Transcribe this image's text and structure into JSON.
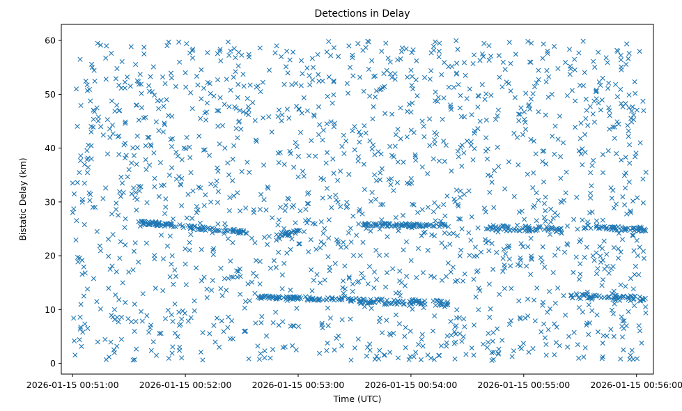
{
  "chart_data": {
    "type": "scatter",
    "title": "Detections in Delay",
    "xlabel": "Time (UTC)",
    "ylabel": "Bistatic Delay (km)",
    "x_tick_labels": [
      "2026-01-15 00:51:00",
      "2026-01-15 00:52:00",
      "2026-01-15 00:53:00",
      "2026-01-15 00:54:00",
      "2026-01-15 00:55:00",
      "2026-01-15 00:56:00"
    ],
    "y_tick_labels": [
      "0",
      "10",
      "20",
      "30",
      "40",
      "50",
      "60"
    ],
    "xlim": [
      "2026-01-15 00:50:54",
      "2026-01-15 00:56:09"
    ],
    "ylim": [
      -2,
      63
    ],
    "grid": false,
    "marker": "x",
    "color": "#1f77b4",
    "series": [
      {
        "points": [
          [
            "00:51:00",
            33.5
          ],
          [
            "00:51:02",
            51
          ],
          [
            "00:51:04",
            56.5
          ],
          [
            "00:51:06",
            12.5
          ],
          [
            "00:51:08",
            6.5
          ],
          [
            "00:51:10",
            38
          ],
          [
            "00:51:12",
            29
          ],
          [
            "00:51:15",
            44
          ],
          [
            "00:51:18",
            59
          ],
          [
            "00:51:20",
            17.5
          ],
          [
            "00:51:22",
            2.5
          ],
          [
            "00:51:25",
            47
          ],
          [
            "00:51:28",
            22
          ],
          [
            "00:51:30",
            36
          ],
          [
            "00:51:33",
            11
          ],
          [
            "00:51:36",
            25.5
          ],
          [
            "00:51:38",
            57.5
          ],
          [
            "00:51:40",
            42
          ],
          [
            "00:51:43",
            4
          ],
          [
            "00:51:46",
            31
          ],
          [
            "00:51:48",
            13.5
          ],
          [
            "00:51:50",
            49
          ],
          [
            "00:51:53",
            20
          ],
          [
            "00:51:56",
            38.5
          ],
          [
            "00:51:58",
            1
          ],
          [
            "00:52:00",
            54
          ],
          [
            "00:52:03",
            8.5
          ],
          [
            "00:52:06",
            28
          ],
          [
            "00:52:08",
            45.5
          ],
          [
            "00:52:10",
            16
          ],
          [
            "00:52:13",
            52
          ],
          [
            "00:52:16",
            33
          ],
          [
            "00:52:18",
            3
          ],
          [
            "00:52:21",
            40
          ],
          [
            "00:52:24",
            19
          ],
          [
            "00:52:26",
            58.5
          ],
          [
            "00:52:29",
            47
          ],
          [
            "00:52:32",
            6
          ],
          [
            "00:52:34",
            35.5
          ],
          [
            "00:52:37",
            13
          ],
          [
            "00:52:40",
            50.5
          ],
          [
            "00:52:43",
            28.5
          ],
          [
            "00:52:46",
            43
          ],
          [
            "00:52:48",
            9.5
          ],
          [
            "00:52:51",
            57
          ],
          [
            "00:52:54",
            20.5
          ],
          [
            "00:52:56",
            39
          ],
          [
            "00:52:59",
            2.5
          ],
          [
            "00:53:02",
            46.5
          ],
          [
            "00:53:05",
            31.5
          ],
          [
            "00:53:08",
            55
          ],
          [
            "00:53:10",
            16.5
          ],
          [
            "00:53:13",
            41.5
          ],
          [
            "00:53:16",
            7
          ],
          [
            "00:53:19",
            52.5
          ],
          [
            "00:53:21",
            34
          ],
          [
            "00:53:24",
            22.5
          ],
          [
            "00:53:27",
            59
          ],
          [
            "00:53:30",
            44
          ],
          [
            "00:53:32",
            4.5
          ],
          [
            "00:53:35",
            37
          ],
          [
            "00:53:38",
            18
          ],
          [
            "00:53:41",
            49.5
          ],
          [
            "00:53:44",
            29.5
          ],
          [
            "00:53:47",
            8
          ],
          [
            "00:53:49",
            56
          ],
          [
            "00:53:52",
            42.5
          ],
          [
            "00:53:55",
            15
          ],
          [
            "00:53:58",
            33.5
          ],
          [
            "00:54:01",
            51
          ],
          [
            "00:54:04",
            3.5
          ],
          [
            "00:54:06",
            45
          ],
          [
            "00:54:09",
            21
          ],
          [
            "00:54:12",
            38
          ],
          [
            "00:54:15",
            58
          ],
          [
            "00:54:18",
            10.5
          ],
          [
            "00:54:21",
            48
          ],
          [
            "00:54:23",
            30.5
          ],
          [
            "00:54:26",
            5.5
          ],
          [
            "00:54:29",
            53.5
          ],
          [
            "00:54:32",
            40.5
          ],
          [
            "00:54:35",
            17
          ],
          [
            "00:54:38",
            57.5
          ],
          [
            "00:54:41",
            35
          ],
          [
            "00:54:43",
            2
          ],
          [
            "00:54:46",
            46
          ],
          [
            "00:54:49",
            19.5
          ],
          [
            "00:54:52",
            52
          ],
          [
            "00:54:55",
            31
          ],
          [
            "00:54:58",
            8.5
          ],
          [
            "00:55:01",
            43.5
          ],
          [
            "00:55:04",
            59.5
          ],
          [
            "00:55:07",
            14
          ],
          [
            "00:55:10",
            37.5
          ],
          [
            "00:55:12",
            1.5
          ],
          [
            "00:55:15",
            50
          ],
          [
            "00:55:18",
            27.5
          ],
          [
            "00:55:21",
            41
          ],
          [
            "00:55:24",
            5
          ],
          [
            "00:55:27",
            56.5
          ],
          [
            "00:55:30",
            18.5
          ],
          [
            "00:55:33",
            45.5
          ],
          [
            "00:55:36",
            33
          ],
          [
            "00:55:39",
            9
          ],
          [
            "00:55:42",
            53
          ],
          [
            "00:55:45",
            39.5
          ],
          [
            "00:55:48",
            21.5
          ],
          [
            "00:55:50",
            58
          ],
          [
            "00:55:53",
            2.5
          ],
          [
            "00:55:56",
            47.5
          ],
          [
            "00:55:59",
            16.5
          ],
          [
            "00:56:02",
            41
          ],
          [
            "00:56:04",
            19.5
          ],
          [
            "00:56:05",
            35.5
          ]
        ]
      }
    ],
    "tracks": [
      {
        "t0": "00:51:35",
        "t1": "00:52:34",
        "y0": 26.2,
        "y1": 24.3,
        "spread": 0.35
      },
      {
        "t0": "00:52:48",
        "t1": "00:53:04",
        "y0": 23.8,
        "y1": 24.6,
        "spread": 0.4
      },
      {
        "t0": "00:53:32",
        "t1": "00:54:20",
        "y0": 25.8,
        "y1": 25.6,
        "spread": 0.3
      },
      {
        "t0": "00:54:40",
        "t1": "00:55:20",
        "y0": 25.2,
        "y1": 24.8,
        "spread": 0.5
      },
      {
        "t0": "00:55:30",
        "t1": "00:56:05",
        "y0": 25.4,
        "y1": 24.9,
        "spread": 0.4
      },
      {
        "t0": "00:52:38",
        "t1": "00:53:32",
        "y0": 12.3,
        "y1": 11.8,
        "spread": 0.3
      },
      {
        "t0": "00:53:32",
        "t1": "00:54:20",
        "y0": 11.6,
        "y1": 11.2,
        "spread": 0.5
      },
      {
        "t0": "00:55:25",
        "t1": "00:56:05",
        "y0": 12.5,
        "y1": 12.0,
        "spread": 0.5
      }
    ],
    "noise_density": 1500,
    "noise_ylim": [
      0.5,
      60
    ]
  }
}
